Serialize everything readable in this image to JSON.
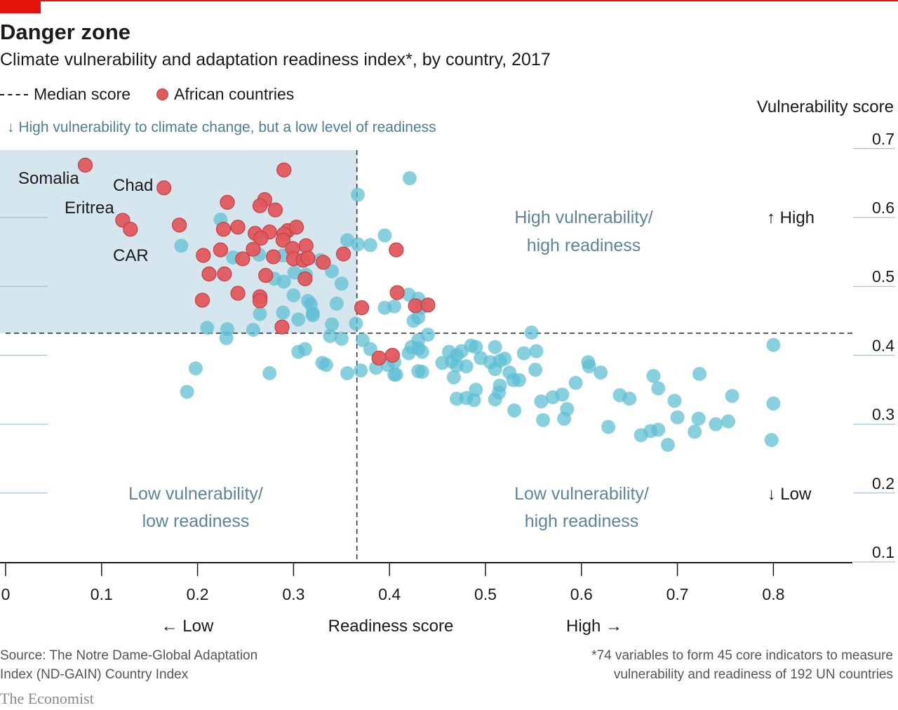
{
  "header": {
    "title": "Danger zone",
    "subtitle": "Climate vulnerability and adaptation readiness index*, by country, 2017"
  },
  "legend": {
    "median_label": "Median score",
    "african_label": "African countries"
  },
  "colors": {
    "accent": "#e3120b",
    "african": "#e0595d",
    "other": "#5bbed3",
    "danger_zone": "#d6e6ee",
    "quadrant_text": "#5c8597"
  },
  "notes": {
    "danger_zone": "↓ High vulnerability to climate change, but a low level of readiness"
  },
  "footer": {
    "source_line1": "Source: The Notre Dame-Global Adaptation",
    "source_line2": "Index (ND-GAIN) Country Index",
    "footnote_line1": "*74 variables to form 45 core indicators to measure",
    "footnote_line2": "vulnerability and readiness of 192 UN countries",
    "brand": "The Economist"
  },
  "chart_data": {
    "type": "scatter",
    "xlabel": "Readiness score",
    "ylabel": "Vulnerability score",
    "xlim": [
      0,
      0.88
    ],
    "ylim": [
      0.1,
      0.7
    ],
    "xticks": [
      0,
      0.1,
      0.2,
      0.3,
      0.4,
      0.5,
      0.6,
      0.7,
      0.8
    ],
    "xtick_labels": [
      "0",
      "0.1",
      "0.2",
      "0.3",
      "0.4",
      "0.5",
      "0.6",
      "0.7",
      "0.8"
    ],
    "yticks": [
      0.1,
      0.2,
      0.3,
      0.4,
      0.5,
      0.6,
      0.7
    ],
    "ytick_labels": [
      "0.1",
      "0.2",
      "0.3",
      "0.4",
      "0.5",
      "0.6",
      "0.7"
    ],
    "x_low": "← Low",
    "x_high": "High →",
    "y_high": "↑ High",
    "y_low": "↓ Low",
    "median_x": 0.366,
    "median_y": 0.432,
    "quadrants": {
      "top_right_line1": "High vulnerability/",
      "top_right_line2": "high readiness",
      "bottom_left_line1": "Low vulnerability/",
      "bottom_left_line2": "low readiness",
      "bottom_right_line1": "Low vulnerability/",
      "bottom_right_line2": "high readiness"
    },
    "annotations": [
      {
        "text": "Somalia",
        "x": 0.083
      },
      {
        "text": "Chad",
        "x": 0.165
      },
      {
        "text": "Eritrea",
        "x": 0.122
      },
      {
        "text": "CAR",
        "x": 0.13
      }
    ],
    "series": [
      {
        "name": "African countries",
        "color": "#e0595d",
        "points": [
          [
            0.083,
            0.676
          ],
          [
            0.165,
            0.643
          ],
          [
            0.29,
            0.669
          ],
          [
            0.122,
            0.596
          ],
          [
            0.13,
            0.583
          ],
          [
            0.181,
            0.589
          ],
          [
            0.231,
            0.622
          ],
          [
            0.27,
            0.626
          ],
          [
            0.265,
            0.617
          ],
          [
            0.281,
            0.611
          ],
          [
            0.227,
            0.583
          ],
          [
            0.242,
            0.586
          ],
          [
            0.294,
            0.581
          ],
          [
            0.303,
            0.586
          ],
          [
            0.26,
            0.577
          ],
          [
            0.275,
            0.579
          ],
          [
            0.266,
            0.57
          ],
          [
            0.29,
            0.576
          ],
          [
            0.289,
            0.567
          ],
          [
            0.313,
            0.559
          ],
          [
            0.224,
            0.553
          ],
          [
            0.258,
            0.554
          ],
          [
            0.299,
            0.555
          ],
          [
            0.206,
            0.545
          ],
          [
            0.247,
            0.54
          ],
          [
            0.279,
            0.543
          ],
          [
            0.3,
            0.54
          ],
          [
            0.31,
            0.538
          ],
          [
            0.315,
            0.541
          ],
          [
            0.331,
            0.535
          ],
          [
            0.352,
            0.547
          ],
          [
            0.407,
            0.553
          ],
          [
            0.212,
            0.518
          ],
          [
            0.228,
            0.518
          ],
          [
            0.271,
            0.516
          ],
          [
            0.312,
            0.511
          ],
          [
            0.242,
            0.49
          ],
          [
            0.265,
            0.485
          ],
          [
            0.265,
            0.479
          ],
          [
            0.205,
            0.48
          ],
          [
            0.408,
            0.491
          ],
          [
            0.427,
            0.472
          ],
          [
            0.44,
            0.473
          ],
          [
            0.371,
            0.469
          ],
          [
            0.288,
            0.441
          ],
          [
            0.389,
            0.396
          ],
          [
            0.403,
            0.4
          ]
        ]
      },
      {
        "name": "Other countries",
        "color": "#5bbed3",
        "points": [
          [
            0.421,
            0.657
          ],
          [
            0.367,
            0.633
          ],
          [
            0.224,
            0.597
          ],
          [
            0.183,
            0.559
          ],
          [
            0.356,
            0.567
          ],
          [
            0.367,
            0.561
          ],
          [
            0.38,
            0.56
          ],
          [
            0.395,
            0.574
          ],
          [
            0.237,
            0.542
          ],
          [
            0.264,
            0.546
          ],
          [
            0.289,
            0.545
          ],
          [
            0.328,
            0.538
          ],
          [
            0.301,
            0.52
          ],
          [
            0.313,
            0.517
          ],
          [
            0.28,
            0.511
          ],
          [
            0.29,
            0.507
          ],
          [
            0.34,
            0.522
          ],
          [
            0.35,
            0.504
          ],
          [
            0.345,
            0.475
          ],
          [
            0.34,
            0.445
          ],
          [
            0.315,
            0.479
          ],
          [
            0.318,
            0.474
          ],
          [
            0.32,
            0.458
          ],
          [
            0.32,
            0.461
          ],
          [
            0.305,
            0.452
          ],
          [
            0.289,
            0.462
          ],
          [
            0.265,
            0.46
          ],
          [
            0.3,
            0.487
          ],
          [
            0.21,
            0.44
          ],
          [
            0.231,
            0.438
          ],
          [
            0.23,
            0.425
          ],
          [
            0.258,
            0.437
          ],
          [
            0.338,
            0.428
          ],
          [
            0.35,
            0.424
          ],
          [
            0.365,
            0.446
          ],
          [
            0.372,
            0.422
          ],
          [
            0.395,
            0.469
          ],
          [
            0.405,
            0.471
          ],
          [
            0.42,
            0.488
          ],
          [
            0.43,
            0.482
          ],
          [
            0.433,
            0.469
          ],
          [
            0.43,
            0.455
          ],
          [
            0.425,
            0.45
          ],
          [
            0.42,
            0.403
          ],
          [
            0.44,
            0.43
          ],
          [
            0.43,
            0.41
          ],
          [
            0.423,
            0.412
          ],
          [
            0.43,
            0.422
          ],
          [
            0.434,
            0.405
          ],
          [
            0.305,
            0.405
          ],
          [
            0.312,
            0.409
          ],
          [
            0.38,
            0.409
          ],
          [
            0.33,
            0.389
          ],
          [
            0.334,
            0.386
          ],
          [
            0.356,
            0.374
          ],
          [
            0.37,
            0.378
          ],
          [
            0.386,
            0.382
          ],
          [
            0.398,
            0.386
          ],
          [
            0.405,
            0.39
          ],
          [
            0.405,
            0.372
          ],
          [
            0.407,
            0.372
          ],
          [
            0.43,
            0.377
          ],
          [
            0.434,
            0.376
          ],
          [
            0.275,
            0.374
          ],
          [
            0.198,
            0.381
          ],
          [
            0.189,
            0.347
          ],
          [
            0.455,
            0.389
          ],
          [
            0.462,
            0.405
          ],
          [
            0.465,
            0.391
          ],
          [
            0.47,
            0.385
          ],
          [
            0.47,
            0.4
          ],
          [
            0.475,
            0.406
          ],
          [
            0.49,
            0.412
          ],
          [
            0.48,
            0.384
          ],
          [
            0.485,
            0.414
          ],
          [
            0.495,
            0.396
          ],
          [
            0.505,
            0.39
          ],
          [
            0.51,
            0.412
          ],
          [
            0.51,
            0.38
          ],
          [
            0.515,
            0.392
          ],
          [
            0.52,
            0.395
          ],
          [
            0.525,
            0.375
          ],
          [
            0.535,
            0.364
          ],
          [
            0.54,
            0.403
          ],
          [
            0.467,
            0.368
          ],
          [
            0.49,
            0.35
          ],
          [
            0.47,
            0.337
          ],
          [
            0.48,
            0.338
          ],
          [
            0.488,
            0.335
          ],
          [
            0.51,
            0.336
          ],
          [
            0.514,
            0.346
          ],
          [
            0.529,
            0.364
          ],
          [
            0.515,
            0.356
          ],
          [
            0.53,
            0.32
          ],
          [
            0.548,
            0.433
          ],
          [
            0.553,
            0.406
          ],
          [
            0.552,
            0.379
          ],
          [
            0.558,
            0.333
          ],
          [
            0.56,
            0.306
          ],
          [
            0.57,
            0.339
          ],
          [
            0.58,
            0.343
          ],
          [
            0.585,
            0.322
          ],
          [
            0.582,
            0.308
          ],
          [
            0.594,
            0.36
          ],
          [
            0.607,
            0.39
          ],
          [
            0.608,
            0.384
          ],
          [
            0.62,
            0.375
          ],
          [
            0.64,
            0.342
          ],
          [
            0.65,
            0.337
          ],
          [
            0.628,
            0.296
          ],
          [
            0.662,
            0.284
          ],
          [
            0.672,
            0.29
          ],
          [
            0.675,
            0.37
          ],
          [
            0.68,
            0.352
          ],
          [
            0.68,
            0.292
          ],
          [
            0.69,
            0.27
          ],
          [
            0.697,
            0.334
          ],
          [
            0.7,
            0.31
          ],
          [
            0.718,
            0.289
          ],
          [
            0.722,
            0.308
          ],
          [
            0.723,
            0.373
          ],
          [
            0.74,
            0.3
          ],
          [
            0.753,
            0.304
          ],
          [
            0.757,
            0.341
          ],
          [
            0.8,
            0.415
          ],
          [
            0.8,
            0.33
          ],
          [
            0.798,
            0.277
          ]
        ]
      }
    ]
  }
}
